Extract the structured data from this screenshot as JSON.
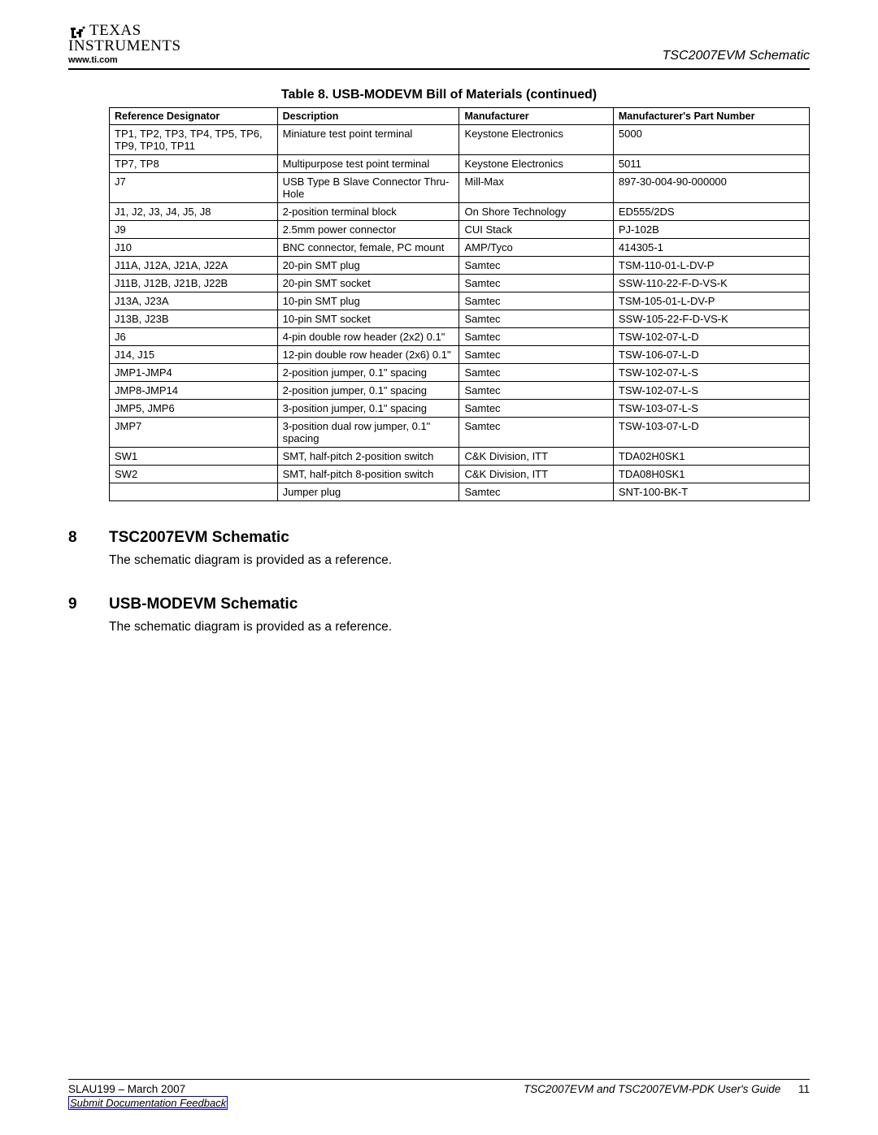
{
  "header": {
    "logo_line1": "TEXAS",
    "logo_line2": "INSTRUMENTS",
    "url": "www.ti.com",
    "right_title": "TSC2007EVM Schematic"
  },
  "table": {
    "title": "Table 8. USB-MODEVM Bill of Materials  (continued)",
    "columns": [
      "Reference Designator",
      "Description",
      "Manufacturer",
      "Manufacturer's Part Number"
    ],
    "rows": [
      [
        "TP1, TP2, TP3, TP4, TP5, TP6, TP9, TP10, TP11",
        "Miniature test point terminal",
        "Keystone Electronics",
        "5000"
      ],
      [
        "TP7, TP8",
        "Multipurpose test point terminal",
        "Keystone Electronics",
        "5011"
      ],
      [
        "J7",
        "USB Type B Slave Connector Thru-Hole",
        "Mill-Max",
        "897-30-004-90-000000"
      ],
      [
        "J1, J2, J3, J4, J5, J8",
        "2-position terminal block",
        "On Shore Technology",
        "ED555/2DS"
      ],
      [
        "J9",
        "2.5mm power connector",
        "CUI Stack",
        "PJ-102B"
      ],
      [
        "J10",
        "BNC connector, female, PC mount",
        "AMP/Tyco",
        "414305-1"
      ],
      [
        "J11A, J12A, J21A, J22A",
        "20-pin SMT plug",
        "Samtec",
        "TSM-110-01-L-DV-P"
      ],
      [
        "J11B, J12B, J21B, J22B",
        "20-pin SMT socket",
        "Samtec",
        "SSW-110-22-F-D-VS-K"
      ],
      [
        "J13A, J23A",
        "10-pin SMT plug",
        "Samtec",
        "TSM-105-01-L-DV-P"
      ],
      [
        "J13B, J23B",
        "10-pin SMT socket",
        "Samtec",
        "SSW-105-22-F-D-VS-K"
      ],
      [
        "J6",
        "4-pin double row header (2x2) 0.1\"",
        "Samtec",
        "TSW-102-07-L-D"
      ],
      [
        "J14, J15",
        "12-pin double row header (2x6) 0.1\"",
        "Samtec",
        "TSW-106-07-L-D"
      ],
      [
        "JMP1-JMP4",
        "2-position jumper, 0.1\" spacing",
        "Samtec",
        "TSW-102-07-L-S"
      ],
      [
        "JMP8-JMP14",
        "2-position jumper, 0.1\" spacing",
        "Samtec",
        "TSW-102-07-L-S"
      ],
      [
        "JMP5, JMP6",
        "3-position jumper, 0.1\" spacing",
        "Samtec",
        "TSW-103-07-L-S"
      ],
      [
        "JMP7",
        "3-position dual row jumper, 0.1\" spacing",
        "Samtec",
        "TSW-103-07-L-D"
      ],
      [
        "SW1",
        "SMT, half-pitch 2-position switch",
        "C&K Division, ITT",
        "TDA02H0SK1"
      ],
      [
        "SW2",
        "SMT, half-pitch 8-position switch",
        "C&K Division, ITT",
        "TDA08H0SK1"
      ],
      [
        "",
        "Jumper plug",
        "Samtec",
        "SNT-100-BK-T"
      ]
    ]
  },
  "sections": [
    {
      "num": "8",
      "title": "TSC2007EVM Schematic",
      "body": "The schematic diagram is provided as a reference."
    },
    {
      "num": "9",
      "title": "USB-MODEVM Schematic",
      "body": "The schematic diagram is provided as a reference."
    }
  ],
  "footer": {
    "left": "SLAU199 – March 2007",
    "right": "TSC2007EVM and TSC2007EVM-PDK User's Guide",
    "page": "11",
    "link": "Submit Documentation Feedback"
  }
}
